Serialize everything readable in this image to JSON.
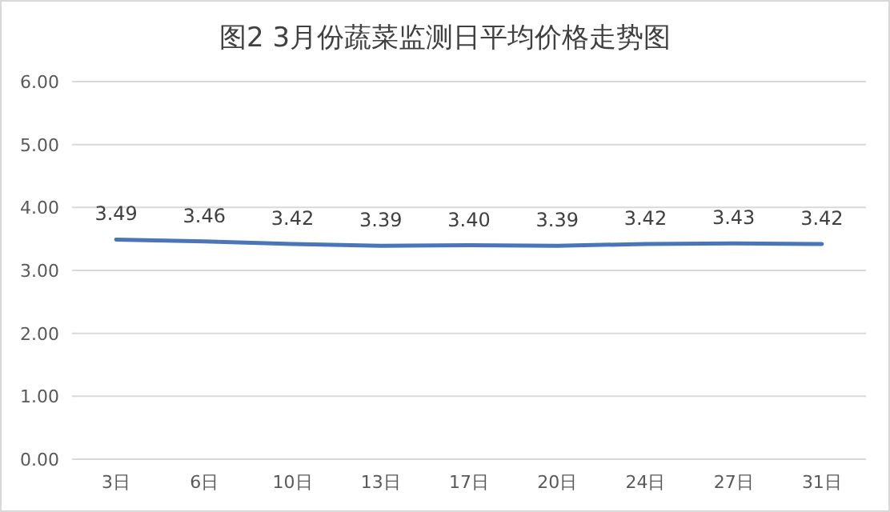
{
  "chart_data": {
    "type": "line",
    "title": "图2  3月份蔬菜监测日平均价格走势图",
    "categories": [
      "3日",
      "6日",
      "10日",
      "13日",
      "17日",
      "20日",
      "24日",
      "27日",
      "31日"
    ],
    "series": [
      {
        "color": "#4a76b8",
        "values": [
          3.49,
          3.46,
          3.42,
          3.39,
          3.4,
          3.39,
          3.42,
          3.43,
          3.42
        ],
        "value_labels": [
          "3.49",
          "3.46",
          "3.42",
          "3.39",
          "3.40",
          "3.39",
          "3.42",
          "3.43",
          "3.42"
        ]
      }
    ],
    "ylim": [
      0,
      6
    ],
    "yticks": [
      {
        "value": 0,
        "label": "0.00"
      },
      {
        "value": 1,
        "label": "1.00"
      },
      {
        "value": 2,
        "label": "2.00"
      },
      {
        "value": 3,
        "label": "3.00"
      },
      {
        "value": 4,
        "label": "4.00"
      },
      {
        "value": 5,
        "label": "5.00"
      },
      {
        "value": 6,
        "label": "6.00"
      }
    ],
    "grid": "y",
    "marker": "none",
    "line_style": "solid"
  }
}
